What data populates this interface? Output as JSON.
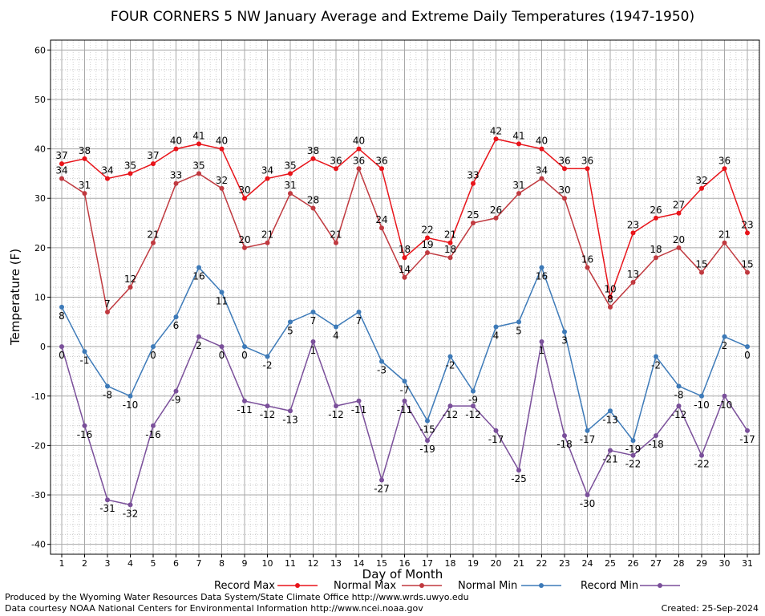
{
  "chart_data": {
    "type": "line",
    "title": "FOUR CORNERS 5 NW January Average and Extreme Daily Temperatures (1947-1950)",
    "xlabel": "Day of Month",
    "ylabel": "Temperature (F)",
    "ylim": [
      -42,
      62
    ],
    "yticks": [
      60,
      50,
      40,
      30,
      20,
      10,
      0,
      -10,
      -20,
      -30,
      -40
    ],
    "grid": true,
    "legend_position": "bottom",
    "categories": [
      "1",
      "2",
      "3",
      "4",
      "5",
      "6",
      "7",
      "8",
      "9",
      "10",
      "11",
      "12",
      "13",
      "14",
      "15",
      "16",
      "17",
      "18",
      "19",
      "20",
      "21",
      "22",
      "23",
      "24",
      "25",
      "26",
      "27",
      "28",
      "29",
      "30",
      "31"
    ],
    "series": [
      {
        "name": "Record Max",
        "color": "#e8141a",
        "values": [
          37,
          38,
          34,
          35,
          37,
          40,
          41,
          40,
          30,
          34,
          35,
          38,
          36,
          40,
          36,
          18,
          22,
          21,
          33,
          42,
          41,
          40,
          36,
          36,
          10,
          23,
          26,
          27,
          32,
          36,
          23
        ]
      },
      {
        "name": "Normal Max",
        "color": "#c0393f",
        "values": [
          34,
          31,
          7,
          12,
          21,
          33,
          35,
          32,
          20,
          21,
          31,
          28,
          21,
          36,
          24,
          14,
          19,
          18,
          25,
          26,
          31,
          34,
          30,
          16,
          8,
          13,
          18,
          20,
          15,
          21,
          15
        ]
      },
      {
        "name": "Normal Min",
        "color": "#3d7ab8",
        "values": [
          8,
          -1,
          -8,
          -10,
          0,
          6,
          16,
          11,
          0,
          -2,
          5,
          7,
          4,
          7,
          -3,
          -7,
          -15,
          -2,
          -9,
          4,
          5,
          16,
          3,
          -17,
          -13,
          -19,
          -2,
          -8,
          -10,
          2,
          0
        ]
      },
      {
        "name": "Record Min",
        "color": "#7a4f9a",
        "values": [
          0,
          -16,
          -31,
          -32,
          -16,
          -9,
          2,
          0,
          -11,
          -12,
          -13,
          1,
          -12,
          -11,
          -27,
          -11,
          -19,
          -12,
          -12,
          -17,
          -25,
          1,
          -18,
          -30,
          -21,
          -22,
          -18,
          -12,
          -22,
          -10,
          -17
        ]
      }
    ]
  },
  "footer": {
    "credit_line1": "Produced by the Wyoming Water Resources Data System/State Climate Office http://www.wrds.uwyo.edu",
    "credit_line2": "Data courtesy NOAA National Centers for Environmental Information http://www.ncei.noaa.gov",
    "created": "Created:  25-Sep-2024"
  }
}
